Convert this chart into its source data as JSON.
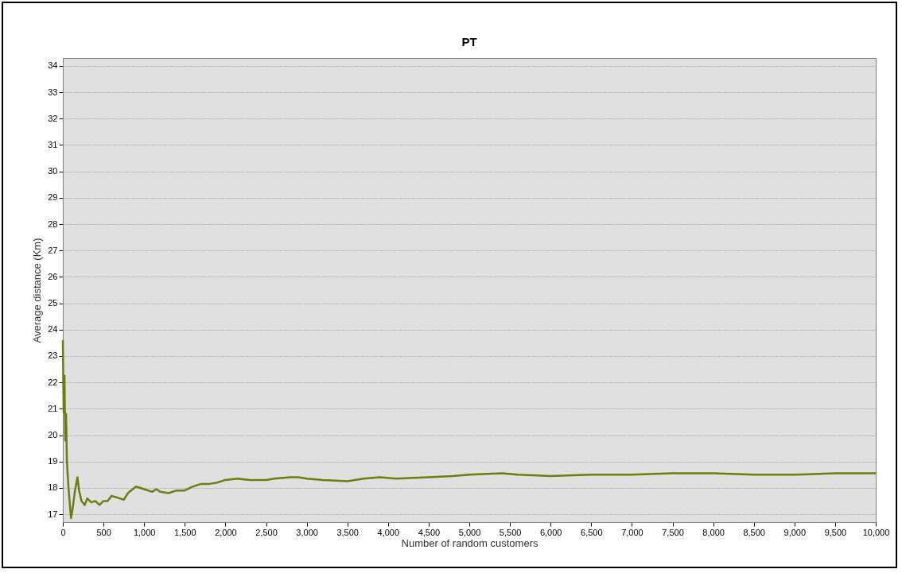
{
  "chart_data": {
    "type": "line",
    "title": "PT",
    "xlabel": "Number of random customers",
    "ylabel": "Average distance (Km)",
    "x": [
      0,
      10,
      20,
      30,
      40,
      50,
      70,
      100,
      120,
      150,
      180,
      200,
      230,
      270,
      300,
      350,
      400,
      450,
      500,
      550,
      600,
      650,
      700,
      750,
      800,
      900,
      1000,
      1100,
      1150,
      1200,
      1300,
      1400,
      1500,
      1600,
      1700,
      1800,
      1900,
      2000,
      2150,
      2300,
      2500,
      2600,
      2800,
      2900,
      3000,
      3200,
      3500,
      3700,
      3900,
      4100,
      4500,
      4800,
      5000,
      5400,
      5600,
      6000,
      6500,
      7000,
      7500,
      8000,
      8500,
      9000,
      9500,
      10000
    ],
    "series": [
      {
        "color": "#6b7d0f",
        "values": [
          23.6,
          20.85,
          22.25,
          19.8,
          20.8,
          19.0,
          18.0,
          16.85,
          17.2,
          17.9,
          18.4,
          17.9,
          17.5,
          17.35,
          17.6,
          17.45,
          17.5,
          17.35,
          17.5,
          17.5,
          17.7,
          17.65,
          17.6,
          17.55,
          17.8,
          18.05,
          17.95,
          17.85,
          17.95,
          17.85,
          17.8,
          17.9,
          17.9,
          18.05,
          18.15,
          18.15,
          18.2,
          18.3,
          18.35,
          18.3,
          18.3,
          18.35,
          18.4,
          18.4,
          18.35,
          18.3,
          18.25,
          18.35,
          18.4,
          18.35,
          18.4,
          18.45,
          18.5,
          18.55,
          18.5,
          18.45,
          18.5,
          18.5,
          18.55,
          18.55,
          18.5,
          18.5,
          18.55,
          18.55
        ]
      }
    ],
    "xlim": [
      0,
      10000
    ],
    "xticks": [
      0,
      500,
      {
        "value": 1000,
        "label": "1,000"
      },
      {
        "value": 1500,
        "label": "1,500"
      },
      {
        "value": 2000,
        "label": "2,000"
      },
      {
        "value": 2500,
        "label": "2,500"
      },
      {
        "value": 3000,
        "label": "3,000"
      },
      {
        "value": 3500,
        "label": "3,500"
      },
      {
        "value": 4000,
        "label": "4,000"
      },
      {
        "value": 4500,
        "label": "4,500"
      },
      {
        "value": 5000,
        "label": "5,000"
      },
      {
        "value": 5500,
        "label": "5,500"
      },
      {
        "value": 6000,
        "label": "6,000"
      },
      {
        "value": 6500,
        "label": "6,500"
      },
      {
        "value": 7000,
        "label": "7,000"
      },
      {
        "value": 7500,
        "label": "7,500"
      },
      {
        "value": 8000,
        "label": "8,000"
      },
      {
        "value": 8500,
        "label": "8,500"
      },
      {
        "value": 9000,
        "label": "9,000"
      },
      {
        "value": 9500,
        "label": "9,500"
      },
      {
        "value": 10000,
        "label": "10,000"
      }
    ],
    "ylim": [
      16.7,
      34.3
    ],
    "yticks": [
      17,
      18,
      19,
      20,
      21,
      22,
      23,
      24,
      25,
      26,
      27,
      28,
      29,
      30,
      31,
      32,
      33,
      34
    ],
    "grid": "y",
    "legend": false,
    "marker": "none",
    "line_style": "solid"
  }
}
